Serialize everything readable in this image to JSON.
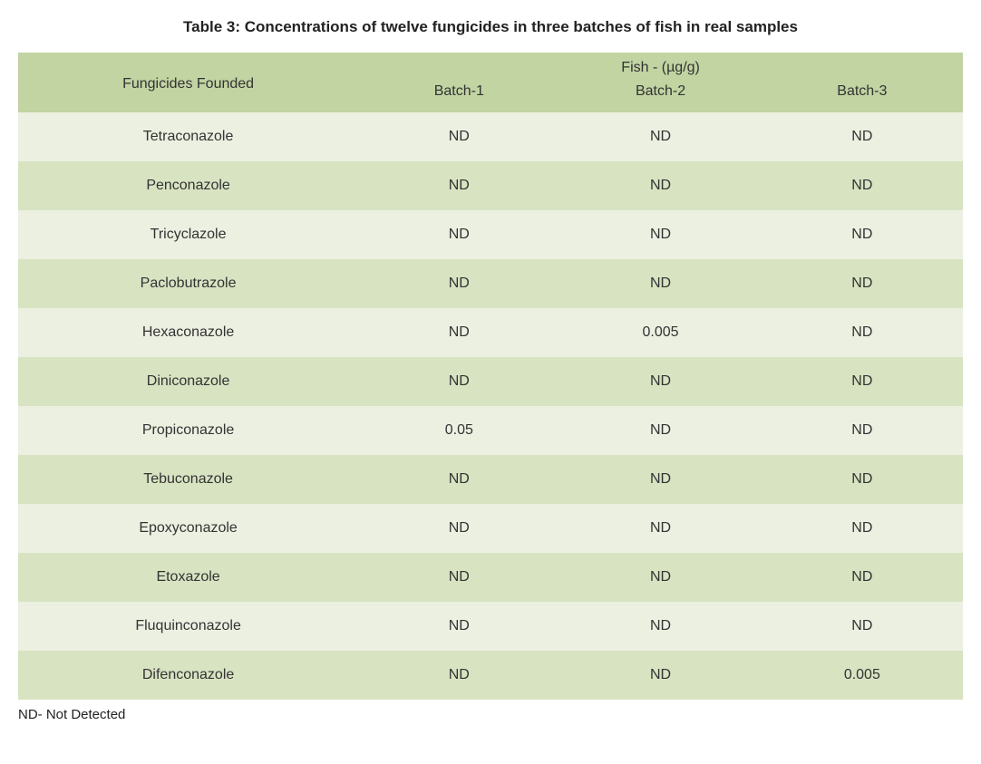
{
  "title": "Table 3: Concentrations of twelve fungicides in three batches of fish in real samples",
  "header": {
    "row_label": "Fungicides Founded",
    "group_label": "Fish - (µg/g)",
    "batches": [
      "Batch-1",
      "Batch-2",
      "Batch-3"
    ]
  },
  "rows": [
    {
      "name": "Tetraconazole",
      "values": [
        "ND",
        "ND",
        "ND"
      ]
    },
    {
      "name": "Penconazole",
      "values": [
        "ND",
        "ND",
        "ND"
      ]
    },
    {
      "name": "Tricyclazole",
      "values": [
        "ND",
        "ND",
        "ND"
      ]
    },
    {
      "name": "Paclobutrazole",
      "values": [
        "ND",
        "ND",
        "ND"
      ]
    },
    {
      "name": "Hexaconazole",
      "values": [
        "ND",
        "0.005",
        "ND"
      ]
    },
    {
      "name": "Diniconazole",
      "values": [
        "ND",
        "ND",
        "ND"
      ]
    },
    {
      "name": "Propiconazole",
      "values": [
        "0.05",
        "ND",
        "ND"
      ]
    },
    {
      "name": "Tebuconazole",
      "values": [
        "ND",
        "ND",
        "ND"
      ]
    },
    {
      "name": "Epoxyconazole",
      "values": [
        "ND",
        "ND",
        "ND"
      ]
    },
    {
      "name": "Etoxazole",
      "values": [
        "ND",
        "ND",
        "ND"
      ]
    },
    {
      "name": "Fluquinconazole",
      "values": [
        "ND",
        "ND",
        "ND"
      ]
    },
    {
      "name": "Difenconazole",
      "values": [
        "ND",
        "ND",
        "0.005"
      ]
    }
  ],
  "footnote": "ND- Not Detected",
  "table_style": {
    "type": "table",
    "header_bg": "#c1d4a2",
    "row_odd_bg": "#ecf0e1",
    "row_even_bg": "#d8e3c2",
    "text_color": "#333333",
    "title_color": "#222222",
    "background": "#ffffff",
    "title_fontsize": 17,
    "cell_fontsize": 16,
    "footnote_fontsize": 15,
    "col_widths": [
      "36%",
      "21.33%",
      "21.33%",
      "21.33%"
    ],
    "row_padding_v": 18
  }
}
